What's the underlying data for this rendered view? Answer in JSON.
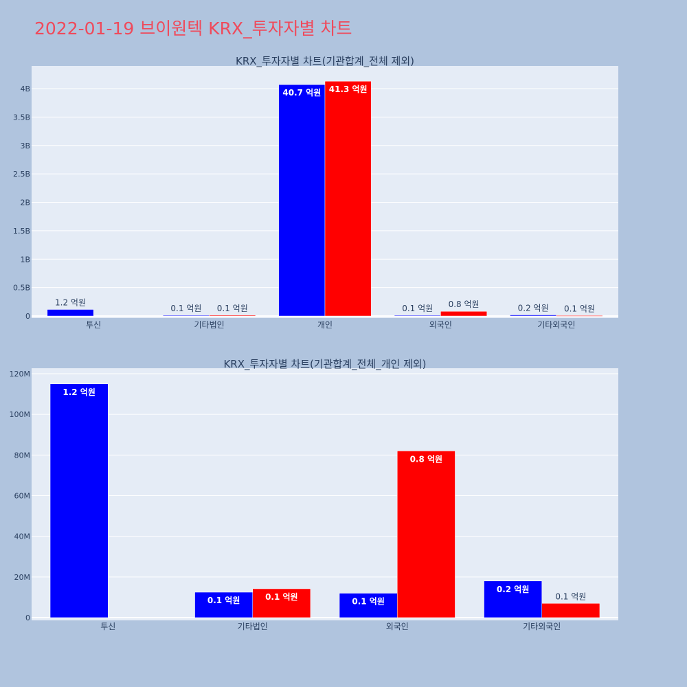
{
  "page_title": "2022-01-19 브이원텍 KRX_투자자별 차트",
  "colors": {
    "series_a": "#0000ff",
    "series_b": "#ff0000",
    "plot_bg": "#e5ecf6",
    "page_bg": "#b0c4de",
    "title": "#ef4a5b"
  },
  "chart_data": [
    {
      "type": "bar",
      "title": "KRX_투자자별 차트(기관합계_전체 제외)",
      "categories": [
        "투신",
        "기타법인",
        "개인",
        "외국인",
        "기타외국인"
      ],
      "series": [
        {
          "color": "#0000ff",
          "values": [
            115000000,
            12000000,
            4070000000,
            12000000,
            18000000
          ],
          "labels": [
            "1.2 억원",
            "0.1 억원",
            "40.7 억원",
            "0.1 억원",
            "0.2 억원"
          ]
        },
        {
          "color": "#ff0000",
          "values": [
            0,
            14000000,
            4130000000,
            82000000,
            7000000
          ],
          "labels": [
            "",
            "0.1 억원",
            "41.3 억원",
            "0.8 억원",
            "0.1 억원"
          ]
        }
      ],
      "ylim": [
        0,
        4200000000
      ],
      "yticks": [
        0,
        500000000,
        1000000000,
        1500000000,
        2000000000,
        2500000000,
        3000000000,
        3500000000,
        4000000000
      ],
      "ytick_labels": [
        "0",
        "0.5B",
        "1B",
        "1.5B",
        "2B",
        "2.5B",
        "3B",
        "3.5B",
        "4B"
      ],
      "grid": true
    },
    {
      "type": "bar",
      "title": "KRX_투자자별 차트(기관합계_전체_개인 제외)",
      "categories": [
        "투신",
        "기타법인",
        "외국인",
        "기타외국인"
      ],
      "series": [
        {
          "color": "#0000ff",
          "values": [
            115000000,
            12500000,
            12000000,
            18000000
          ],
          "labels": [
            "1.2 억원",
            "0.1 억원",
            "0.1 억원",
            "0.2 억원"
          ]
        },
        {
          "color": "#ff0000",
          "values": [
            0,
            14200000,
            82000000,
            7000000
          ],
          "labels": [
            "",
            "0.1 억원",
            "0.8 억원",
            "0.1 억원"
          ]
        }
      ],
      "ylim": [
        0,
        121000000
      ],
      "yticks": [
        0,
        20000000,
        40000000,
        60000000,
        80000000,
        100000000,
        120000000
      ],
      "ytick_labels": [
        "0",
        "20M",
        "40M",
        "60M",
        "80M",
        "100M",
        "120M"
      ],
      "grid": true
    }
  ]
}
